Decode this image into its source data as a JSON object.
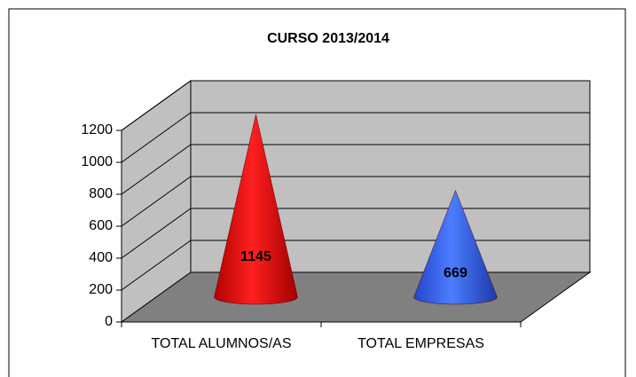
{
  "chart_data": {
    "type": "cone",
    "title": "CURSO 2013/2014",
    "categories": [
      "TOTAL ALUMNOS/AS",
      "TOTAL EMPRESAS"
    ],
    "series": [
      {
        "name": "CURSO 2013/2014",
        "colors": [
          "#ff0000",
          "#3366ff"
        ],
        "values": [
          1145,
          669
        ]
      }
    ],
    "ylim": [
      0,
      1200
    ],
    "yticks": [
      0,
      200,
      400,
      600,
      800,
      1000,
      1200
    ],
    "grid": true
  }
}
